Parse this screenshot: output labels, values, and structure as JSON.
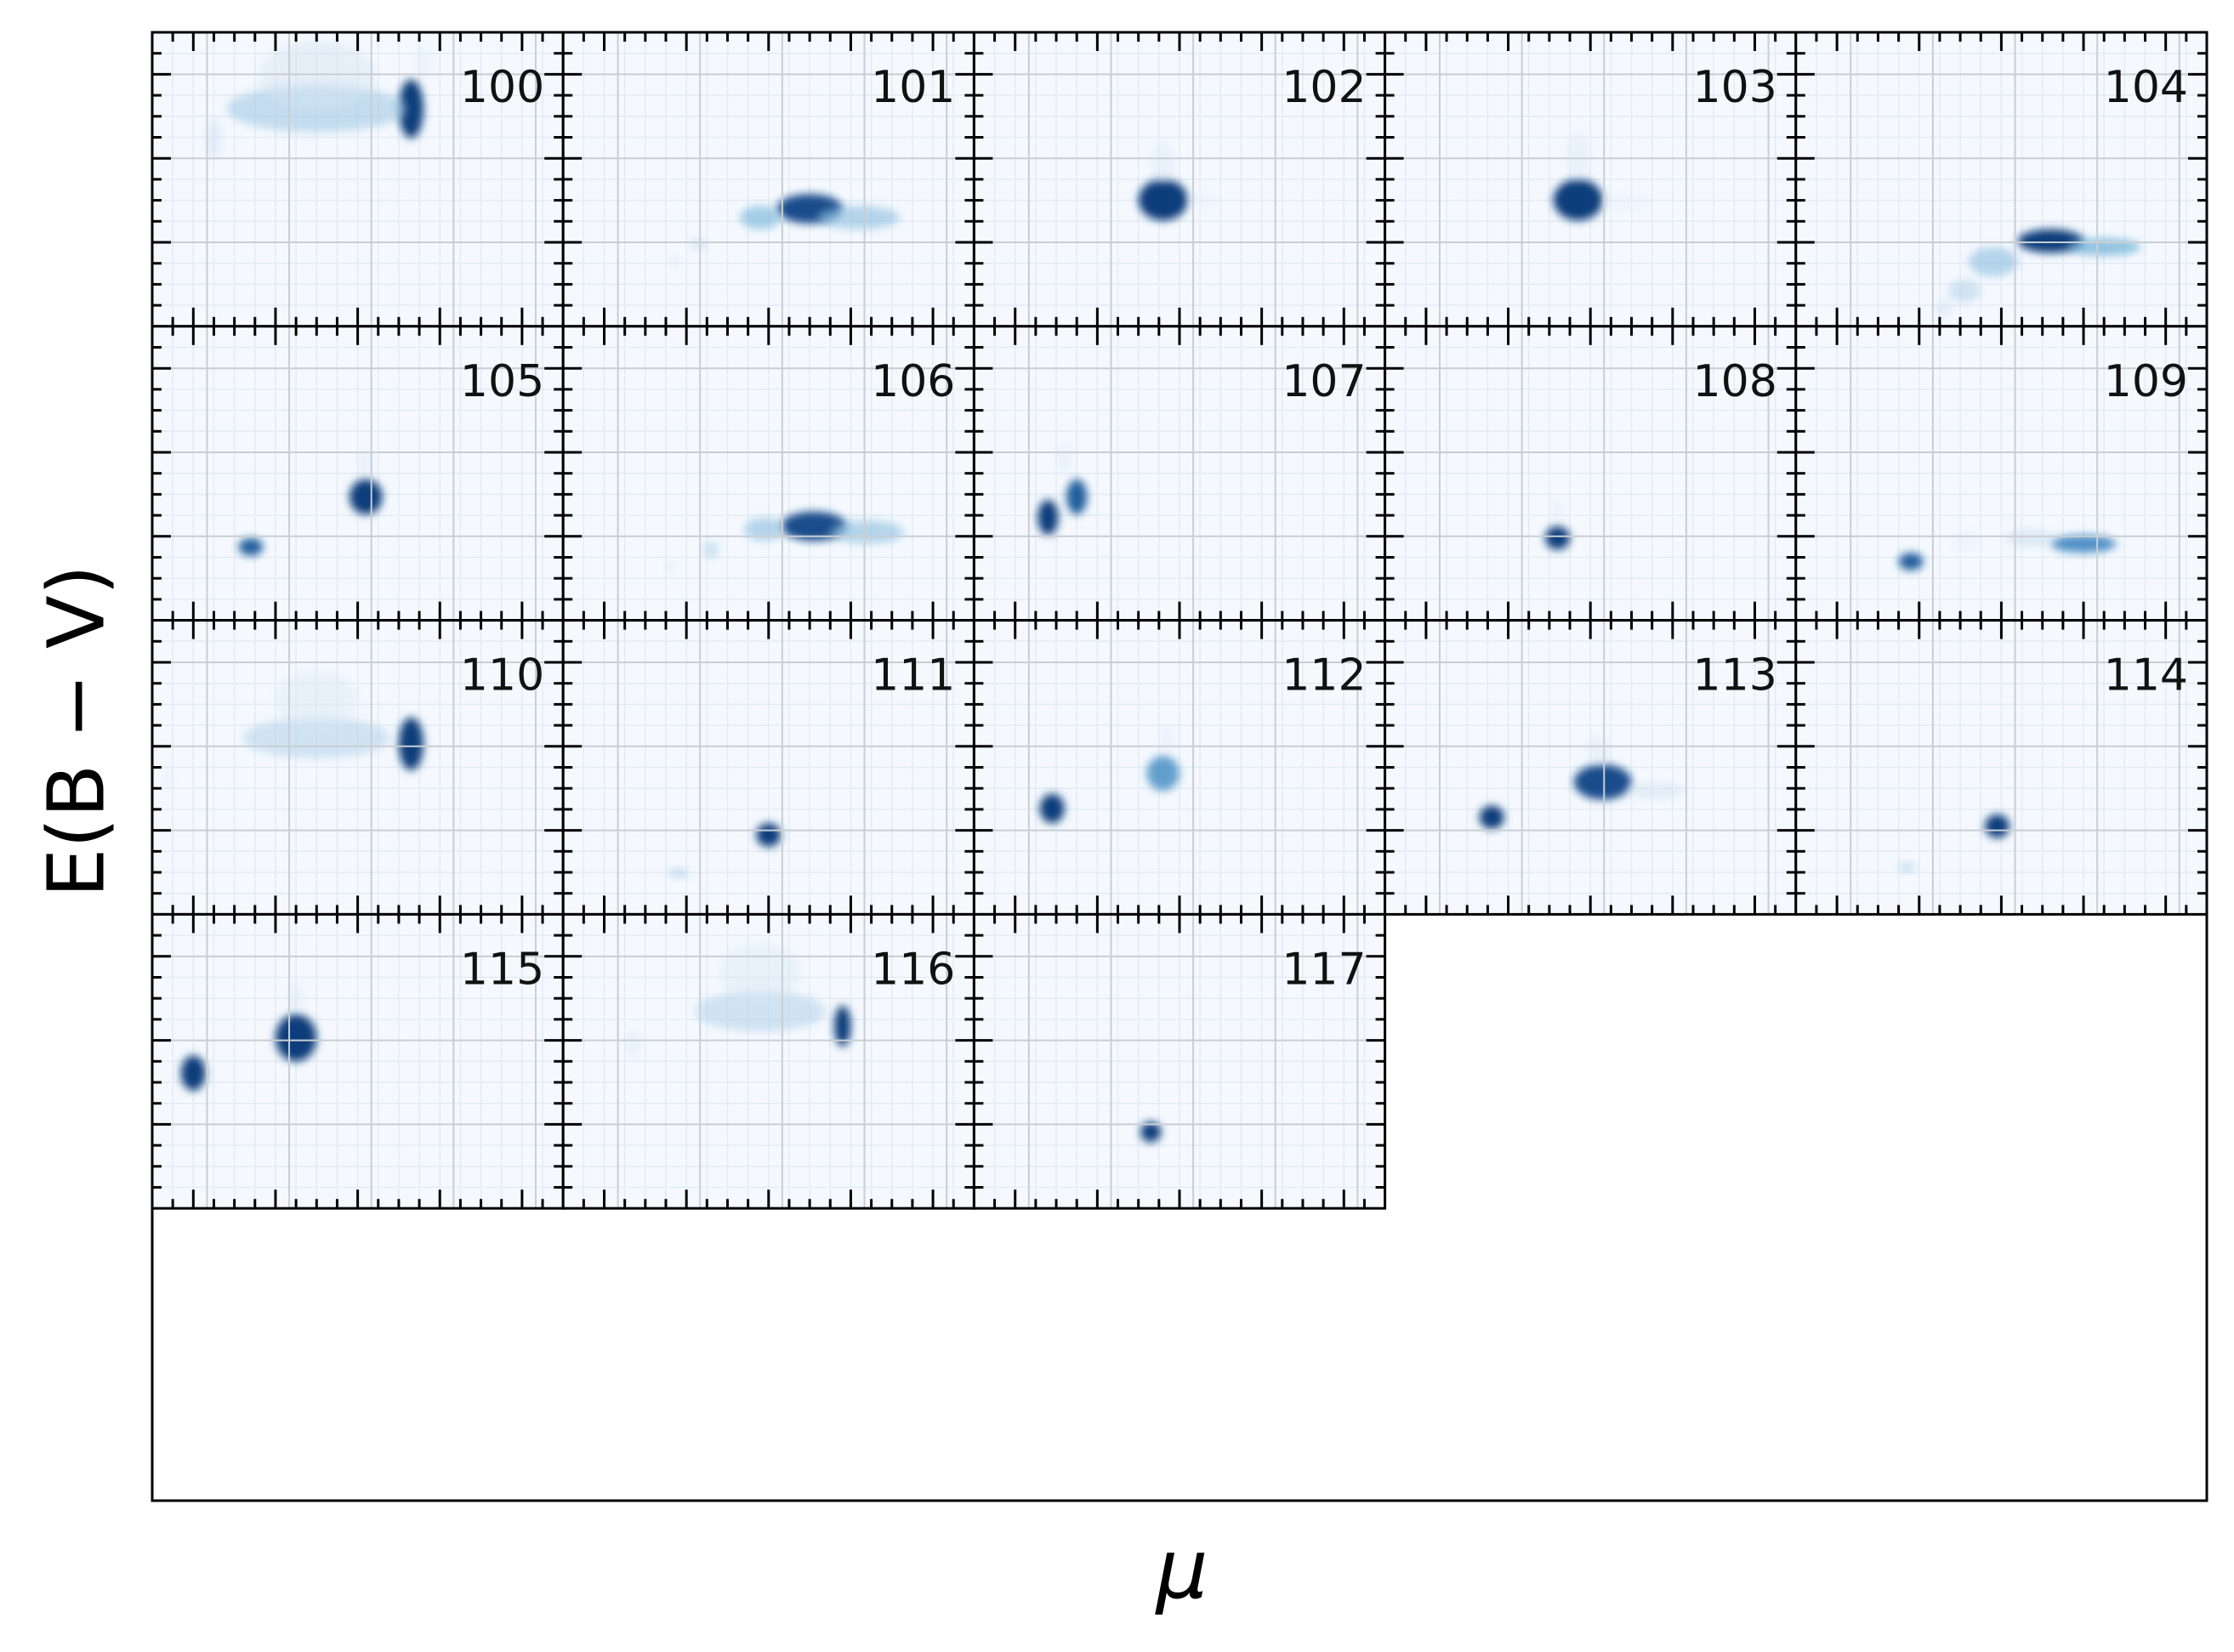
{
  "chart_data": {
    "type": "heatmap",
    "xlabel": "μ",
    "ylabel": "E(B − V)",
    "grid": true,
    "colormap": "Blues",
    "axis_tick_labels_shown": false,
    "panels": [
      {
        "label": "100",
        "blobs": [
          {
            "mu": 0.63,
            "ebv": 0.74,
            "w": 0.03,
            "h": 0.1,
            "a": 0.95
          },
          {
            "mu": 0.4,
            "ebv": 0.74,
            "w": 0.22,
            "h": 0.08,
            "a": 0.35
          },
          {
            "mu": 0.4,
            "ebv": 0.85,
            "w": 0.14,
            "h": 0.12,
            "a": 0.18
          },
          {
            "mu": 0.15,
            "ebv": 0.64,
            "w": 0.02,
            "h": 0.07,
            "a": 0.2
          },
          {
            "mu": 0.66,
            "ebv": 0.9,
            "w": 0.02,
            "h": 0.06,
            "a": 0.12
          }
        ]
      },
      {
        "label": "101",
        "blobs": [
          {
            "mu": 0.6,
            "ebv": 0.4,
            "w": 0.08,
            "h": 0.05,
            "a": 0.9
          },
          {
            "mu": 0.72,
            "ebv": 0.37,
            "w": 0.1,
            "h": 0.04,
            "a": 0.4
          },
          {
            "mu": 0.48,
            "ebv": 0.37,
            "w": 0.05,
            "h": 0.04,
            "a": 0.45
          },
          {
            "mu": 0.33,
            "ebv": 0.28,
            "w": 0.02,
            "h": 0.02,
            "a": 0.28
          },
          {
            "mu": 0.27,
            "ebv": 0.22,
            "w": 0.01,
            "h": 0.02,
            "a": 0.2
          }
        ]
      },
      {
        "label": "102",
        "blobs": [
          {
            "mu": 0.46,
            "ebv": 0.43,
            "w": 0.06,
            "h": 0.07,
            "a": 0.95
          },
          {
            "mu": 0.46,
            "ebv": 0.56,
            "w": 0.03,
            "h": 0.07,
            "a": 0.15
          },
          {
            "mu": 0.56,
            "ebv": 0.43,
            "w": 0.04,
            "h": 0.03,
            "a": 0.1
          }
        ]
      },
      {
        "label": "103",
        "blobs": [
          {
            "mu": 0.47,
            "ebv": 0.43,
            "w": 0.06,
            "h": 0.07,
            "a": 0.95
          },
          {
            "mu": 0.47,
            "ebv": 0.58,
            "w": 0.03,
            "h": 0.08,
            "a": 0.15
          },
          {
            "mu": 0.59,
            "ebv": 0.42,
            "w": 0.06,
            "h": 0.03,
            "a": 0.1
          }
        ]
      },
      {
        "label": "104",
        "blobs": [
          {
            "mu": 0.62,
            "ebv": 0.29,
            "w": 0.08,
            "h": 0.04,
            "a": 0.95
          },
          {
            "mu": 0.75,
            "ebv": 0.27,
            "w": 0.09,
            "h": 0.03,
            "a": 0.5
          },
          {
            "mu": 0.48,
            "ebv": 0.22,
            "w": 0.06,
            "h": 0.05,
            "a": 0.4
          },
          {
            "mu": 0.41,
            "ebv": 0.12,
            "w": 0.04,
            "h": 0.04,
            "a": 0.3
          },
          {
            "mu": 0.36,
            "ebv": 0.06,
            "w": 0.02,
            "h": 0.03,
            "a": 0.2
          }
        ]
      },
      {
        "label": "105",
        "blobs": [
          {
            "mu": 0.52,
            "ebv": 0.42,
            "w": 0.04,
            "h": 0.06,
            "a": 0.95
          },
          {
            "mu": 0.52,
            "ebv": 0.54,
            "w": 0.02,
            "h": 0.04,
            "a": 0.15
          },
          {
            "mu": 0.24,
            "ebv": 0.25,
            "w": 0.03,
            "h": 0.03,
            "a": 0.85
          }
        ]
      },
      {
        "label": "106",
        "blobs": [
          {
            "mu": 0.61,
            "ebv": 0.32,
            "w": 0.08,
            "h": 0.05,
            "a": 0.9
          },
          {
            "mu": 0.74,
            "ebv": 0.3,
            "w": 0.09,
            "h": 0.04,
            "a": 0.4
          },
          {
            "mu": 0.49,
            "ebv": 0.31,
            "w": 0.05,
            "h": 0.04,
            "a": 0.4
          },
          {
            "mu": 0.36,
            "ebv": 0.24,
            "w": 0.02,
            "h": 0.03,
            "a": 0.3
          },
          {
            "mu": 0.26,
            "ebv": 0.18,
            "w": 0.01,
            "h": 0.02,
            "a": 0.2
          }
        ]
      },
      {
        "label": "107",
        "blobs": [
          {
            "mu": 0.18,
            "ebv": 0.35,
            "w": 0.025,
            "h": 0.06,
            "a": 0.95
          },
          {
            "mu": 0.25,
            "ebv": 0.42,
            "w": 0.025,
            "h": 0.06,
            "a": 0.85
          },
          {
            "mu": 0.22,
            "ebv": 0.55,
            "w": 0.02,
            "h": 0.05,
            "a": 0.15
          }
        ]
      },
      {
        "label": "108",
        "blobs": [
          {
            "mu": 0.42,
            "ebv": 0.28,
            "w": 0.03,
            "h": 0.04,
            "a": 0.95
          },
          {
            "mu": 0.42,
            "ebv": 0.38,
            "w": 0.015,
            "h": 0.03,
            "a": 0.15
          }
        ]
      },
      {
        "label": "109",
        "blobs": [
          {
            "mu": 0.7,
            "ebv": 0.26,
            "w": 0.08,
            "h": 0.03,
            "a": 0.7
          },
          {
            "mu": 0.57,
            "ebv": 0.28,
            "w": 0.06,
            "h": 0.03,
            "a": 0.25
          },
          {
            "mu": 0.28,
            "ebv": 0.2,
            "w": 0.03,
            "h": 0.03,
            "a": 0.85
          },
          {
            "mu": 0.41,
            "ebv": 0.27,
            "w": 0.03,
            "h": 0.04,
            "a": 0.1
          }
        ]
      },
      {
        "label": "110",
        "blobs": [
          {
            "mu": 0.63,
            "ebv": 0.58,
            "w": 0.03,
            "h": 0.09,
            "a": 0.95
          },
          {
            "mu": 0.4,
            "ebv": 0.6,
            "w": 0.18,
            "h": 0.07,
            "a": 0.3
          },
          {
            "mu": 0.4,
            "ebv": 0.73,
            "w": 0.1,
            "h": 0.1,
            "a": 0.15
          },
          {
            "mu": 0.04,
            "ebv": 0.47,
            "w": 0.01,
            "h": 0.05,
            "a": 0.15
          }
        ]
      },
      {
        "label": "111",
        "blobs": [
          {
            "mu": 0.5,
            "ebv": 0.27,
            "w": 0.03,
            "h": 0.04,
            "a": 0.95
          },
          {
            "mu": 0.28,
            "ebv": 0.14,
            "w": 0.025,
            "h": 0.015,
            "a": 0.35
          }
        ]
      },
      {
        "label": "112",
        "blobs": [
          {
            "mu": 0.19,
            "ebv": 0.36,
            "w": 0.03,
            "h": 0.05,
            "a": 0.95
          },
          {
            "mu": 0.46,
            "ebv": 0.48,
            "w": 0.04,
            "h": 0.06,
            "a": 0.65
          },
          {
            "mu": 0.47,
            "ebv": 0.6,
            "w": 0.02,
            "h": 0.05,
            "a": 0.12
          }
        ]
      },
      {
        "label": "113",
        "blobs": [
          {
            "mu": 0.53,
            "ebv": 0.45,
            "w": 0.07,
            "h": 0.06,
            "a": 0.9
          },
          {
            "mu": 0.66,
            "ebv": 0.42,
            "w": 0.07,
            "h": 0.03,
            "a": 0.2
          },
          {
            "mu": 0.52,
            "ebv": 0.56,
            "w": 0.03,
            "h": 0.05,
            "a": 0.15
          },
          {
            "mu": 0.26,
            "ebv": 0.33,
            "w": 0.03,
            "h": 0.04,
            "a": 0.95
          }
        ]
      },
      {
        "label": "114",
        "blobs": [
          {
            "mu": 0.49,
            "ebv": 0.3,
            "w": 0.03,
            "h": 0.04,
            "a": 0.95
          },
          {
            "mu": 0.27,
            "ebv": 0.16,
            "w": 0.02,
            "h": 0.015,
            "a": 0.35
          }
        ]
      },
      {
        "label": "115",
        "blobs": [
          {
            "mu": 0.35,
            "ebv": 0.58,
            "w": 0.05,
            "h": 0.08,
            "a": 0.95
          },
          {
            "mu": 0.35,
            "ebv": 0.72,
            "w": 0.02,
            "h": 0.05,
            "a": 0.15
          },
          {
            "mu": 0.1,
            "ebv": 0.46,
            "w": 0.03,
            "h": 0.06,
            "a": 0.95
          }
        ]
      },
      {
        "label": "116",
        "blobs": [
          {
            "mu": 0.68,
            "ebv": 0.62,
            "w": 0.02,
            "h": 0.07,
            "a": 0.95
          },
          {
            "mu": 0.48,
            "ebv": 0.67,
            "w": 0.16,
            "h": 0.07,
            "a": 0.3
          },
          {
            "mu": 0.48,
            "ebv": 0.8,
            "w": 0.1,
            "h": 0.1,
            "a": 0.15
          },
          {
            "mu": 0.17,
            "ebv": 0.56,
            "w": 0.02,
            "h": 0.05,
            "a": 0.15
          }
        ]
      },
      {
        "label": "117",
        "blobs": [
          {
            "mu": 0.43,
            "ebv": 0.26,
            "w": 0.025,
            "h": 0.035,
            "a": 0.95
          }
        ]
      }
    ]
  }
}
